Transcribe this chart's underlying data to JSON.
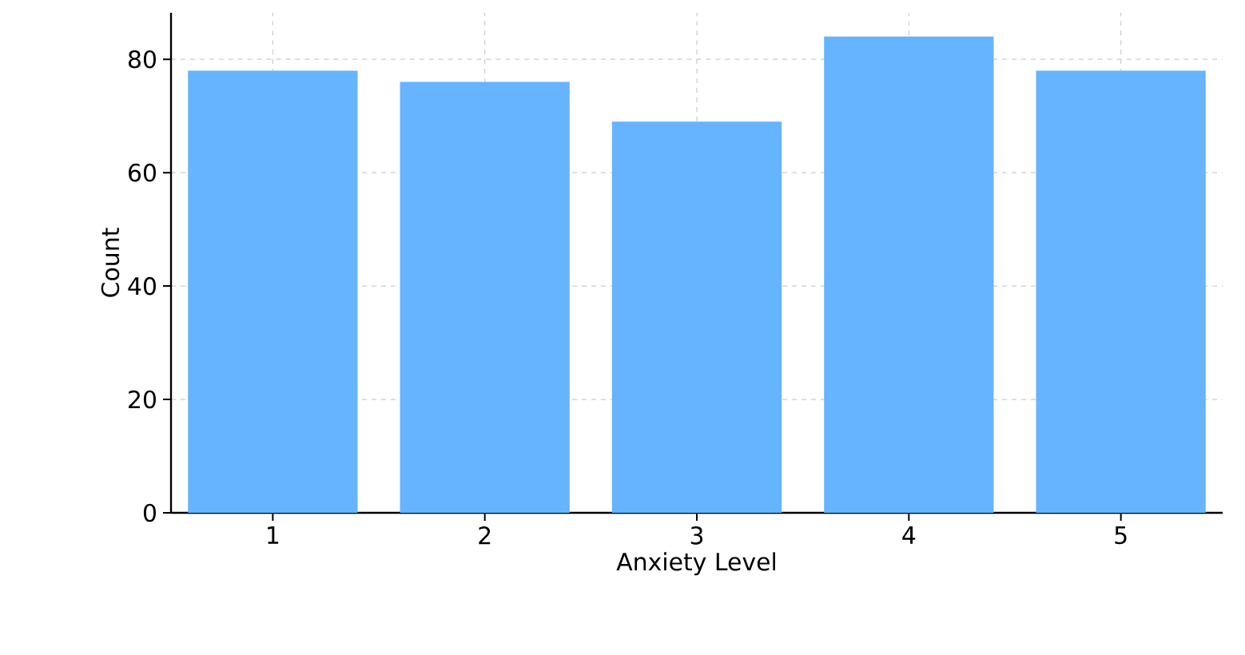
{
  "chart_data": {
    "type": "bar",
    "xlabel": "Anxiety Level",
    "ylabel": "Count",
    "categories": [
      "1",
      "2",
      "3",
      "4",
      "5"
    ],
    "values": [
      78,
      76,
      69,
      84,
      78
    ],
    "color": "#66b3ff",
    "ylim": [
      0,
      88.2
    ],
    "yticks": [
      0,
      20,
      40,
      60,
      80
    ],
    "grid": true
  }
}
